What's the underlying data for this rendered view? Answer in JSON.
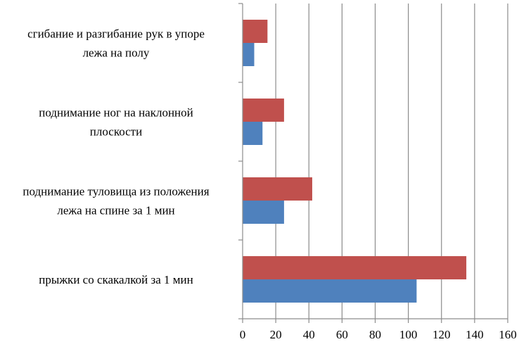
{
  "chart_data": {
    "type": "bar",
    "orientation": "horizontal",
    "categories": [
      "сгибание и разгибание рук в упоре лежа на полу",
      "поднимание ног на наклонной плоскости",
      "поднимание туловища из положения лежа на спине за 1 мин",
      "прыжки со скакалкой за 1 мин"
    ],
    "category_label_lines": [
      [
        "сгибание и разгибание рук в упоре",
        "лежа на полу"
      ],
      [
        "поднимание ног на наклонной",
        "плоскости"
      ],
      [
        "поднимание туловища из положения",
        "лежа на спине за 1 мин"
      ],
      [
        "прыжки со скакалкой за 1 мин"
      ]
    ],
    "series": [
      {
        "values": [
          15,
          25,
          42,
          135
        ],
        "color": "#c0504d"
      },
      {
        "values": [
          7,
          12,
          25,
          105
        ],
        "color": "#4f81bd"
      }
    ],
    "xlim": [
      0,
      160
    ],
    "x_ticks": [
      "0",
      "20",
      "40",
      "60",
      "80",
      "100",
      "120",
      "140",
      "160"
    ],
    "grid": true,
    "legend": "none",
    "title": "",
    "xlabel": "",
    "ylabel": ""
  }
}
